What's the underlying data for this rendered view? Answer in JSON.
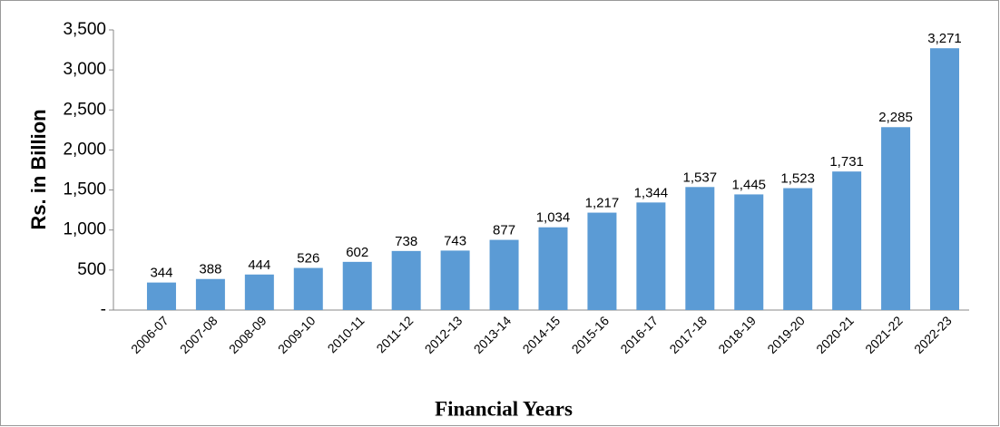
{
  "chart_data": {
    "type": "bar",
    "y_label": "Rs. in Billion",
    "x_label": "Financial Years",
    "categories": [
      "2006-07",
      "2007-08",
      "2008-09",
      "2009-10",
      "2010-11",
      "2011-12",
      "2012-13",
      "2013-14",
      "2014-15",
      "2015-16",
      "2016-17",
      "2017-18",
      "2018-19",
      "2019-20",
      "2020-21",
      "2021-22",
      "2022-23"
    ],
    "values": [
      344,
      388,
      444,
      526,
      602,
      738,
      743,
      877,
      1034,
      1217,
      1344,
      1537,
      1445,
      1523,
      1731,
      2285,
      3271
    ],
    "value_labels": [
      "344",
      "388",
      "444",
      "526",
      "602",
      "738",
      "743",
      "877",
      "1,034",
      "1,217",
      "1,344",
      "1,537",
      "1,445",
      "1,523",
      "1,731",
      "2,285",
      "3,271"
    ],
    "color": "#5b9bd5",
    "ylim": [
      0,
      3500
    ],
    "yticks": [
      {
        "value": 0,
        "label": "-"
      },
      500,
      {
        "value": 1000,
        "label": "1,000"
      },
      {
        "value": 1500,
        "label": "1,500"
      },
      {
        "value": 2000,
        "label": "2,000"
      },
      {
        "value": 2500,
        "label": "2,500"
      },
      {
        "value": 3000,
        "label": "3,000"
      },
      {
        "value": 3500,
        "label": "3,500"
      }
    ],
    "grid": false
  }
}
